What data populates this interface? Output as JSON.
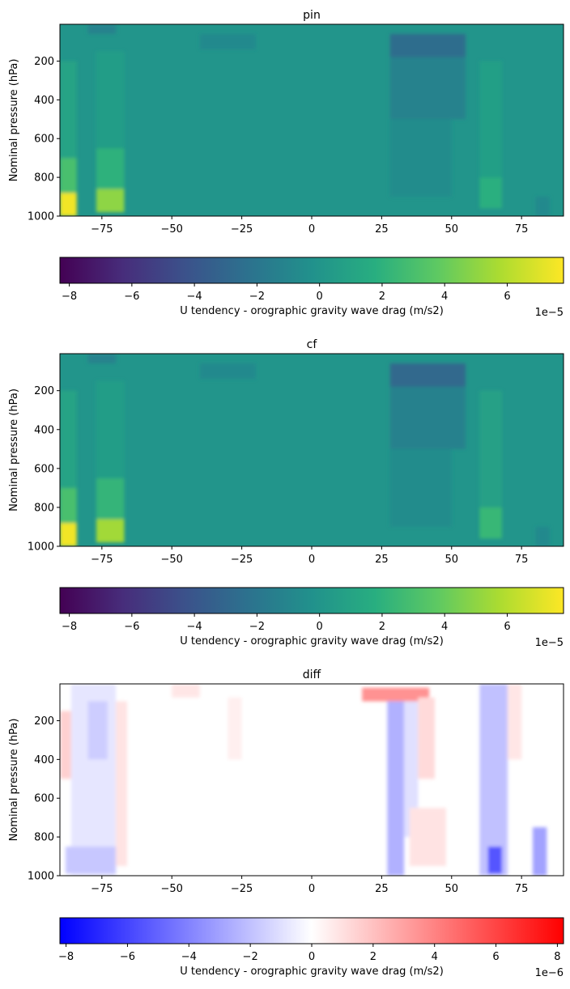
{
  "chart_data": [
    {
      "type": "heatmap",
      "title": "pin",
      "xlabel": "",
      "ylabel": "Nominal pressure (hPa)",
      "xlim": [
        -90,
        90
      ],
      "ylim": [
        1000,
        10
      ],
      "xticks": [
        "−75",
        "−50",
        "−25",
        "0",
        "25",
        "50",
        "75"
      ],
      "yticks": [
        "200",
        "400",
        "600",
        "800",
        "1000"
      ],
      "colormap": "viridis",
      "colorbar": {
        "label": "U tendency - orographic gravity wave drag (m/s2)",
        "range": [
          -8.3,
          7.8
        ],
        "ticks": [
          "−8",
          "−6",
          "−4",
          "−2",
          "0",
          "2",
          "4",
          "6"
        ],
        "offset": "1e−5"
      },
      "features": [
        {
          "lat": [
            -90,
            -84
          ],
          "p": [
            880,
            1000
          ],
          "value": 7.5
        },
        {
          "lat": [
            -90,
            -84
          ],
          "p": [
            700,
            880
          ],
          "value": 3.0
        },
        {
          "lat": [
            -90,
            -84
          ],
          "p": [
            200,
            700
          ],
          "value": 1.0
        },
        {
          "lat": [
            -77,
            -67
          ],
          "p": [
            860,
            980
          ],
          "value": 5.0
        },
        {
          "lat": [
            -77,
            -67
          ],
          "p": [
            650,
            860
          ],
          "value": 2.0
        },
        {
          "lat": [
            -77,
            -67
          ],
          "p": [
            150,
            650
          ],
          "value": 0.6
        },
        {
          "lat": [
            -80,
            -70
          ],
          "p": [
            10,
            60
          ],
          "value": -1.2
        },
        {
          "lat": [
            -40,
            -20
          ],
          "p": [
            60,
            140
          ],
          "value": -0.8
        },
        {
          "lat": [
            28,
            55
          ],
          "p": [
            60,
            180
          ],
          "value": -2.6
        },
        {
          "lat": [
            28,
            55
          ],
          "p": [
            180,
            500
          ],
          "value": -1.2
        },
        {
          "lat": [
            28,
            50
          ],
          "p": [
            500,
            900
          ],
          "value": -0.6
        },
        {
          "lat": [
            60,
            68
          ],
          "p": [
            800,
            960
          ],
          "value": 1.8
        },
        {
          "lat": [
            60,
            68
          ],
          "p": [
            200,
            800
          ],
          "value": 0.7
        },
        {
          "lat": [
            80,
            85
          ],
          "p": [
            900,
            1000
          ],
          "value": -0.8
        }
      ]
    },
    {
      "type": "heatmap",
      "title": "cf",
      "xlabel": "",
      "ylabel": "Nominal pressure (hPa)",
      "xlim": [
        -90,
        90
      ],
      "ylim": [
        1000,
        10
      ],
      "xticks": [
        "−75",
        "−50",
        "−25",
        "0",
        "25",
        "50",
        "75"
      ],
      "yticks": [
        "200",
        "400",
        "600",
        "800",
        "1000"
      ],
      "colormap": "viridis",
      "colorbar": {
        "label": "U tendency - orographic gravity wave drag (m/s2)",
        "range": [
          -8.3,
          7.8
        ],
        "ticks": [
          "−8",
          "−6",
          "−4",
          "−2",
          "0",
          "2",
          "4",
          "6"
        ],
        "offset": "1e−5"
      },
      "features": [
        {
          "lat": [
            -90,
            -84
          ],
          "p": [
            880,
            1000
          ],
          "value": 7.5
        },
        {
          "lat": [
            -90,
            -84
          ],
          "p": [
            700,
            880
          ],
          "value": 3.0
        },
        {
          "lat": [
            -90,
            -84
          ],
          "p": [
            200,
            700
          ],
          "value": 1.0
        },
        {
          "lat": [
            -77,
            -67
          ],
          "p": [
            860,
            980
          ],
          "value": 5.5
        },
        {
          "lat": [
            -77,
            -67
          ],
          "p": [
            650,
            860
          ],
          "value": 2.2
        },
        {
          "lat": [
            -77,
            -67
          ],
          "p": [
            150,
            650
          ],
          "value": 0.6
        },
        {
          "lat": [
            -80,
            -70
          ],
          "p": [
            10,
            60
          ],
          "value": -1.2
        },
        {
          "lat": [
            -40,
            -20
          ],
          "p": [
            60,
            140
          ],
          "value": -0.8
        },
        {
          "lat": [
            28,
            55
          ],
          "p": [
            60,
            180
          ],
          "value": -2.8
        },
        {
          "lat": [
            28,
            55
          ],
          "p": [
            180,
            500
          ],
          "value": -1.3
        },
        {
          "lat": [
            28,
            50
          ],
          "p": [
            500,
            900
          ],
          "value": -0.6
        },
        {
          "lat": [
            60,
            68
          ],
          "p": [
            800,
            960
          ],
          "value": 2.4
        },
        {
          "lat": [
            60,
            68
          ],
          "p": [
            200,
            800
          ],
          "value": 0.8
        },
        {
          "lat": [
            80,
            85
          ],
          "p": [
            900,
            1000
          ],
          "value": -0.8
        }
      ]
    },
    {
      "type": "heatmap",
      "title": "diff",
      "xlabel": "",
      "ylabel": "Nominal pressure (hPa)",
      "xlim": [
        -90,
        90
      ],
      "ylim": [
        1000,
        10
      ],
      "xticks": [
        "−75",
        "−50",
        "−25",
        "0",
        "25",
        "50",
        "75"
      ],
      "yticks": [
        "200",
        "400",
        "600",
        "800",
        "1000"
      ],
      "colormap": "bwr",
      "colorbar": {
        "label": "U tendency - orographic gravity wave drag (m/s2)",
        "range": [
          -8.2,
          8.2
        ],
        "ticks": [
          "−8",
          "−6",
          "−4",
          "−2",
          "0",
          "2",
          "4",
          "6",
          "8"
        ],
        "offset": "1e−6"
      },
      "features": [
        {
          "lat": [
            -90,
            -86
          ],
          "p": [
            150,
            500
          ],
          "value": 1.5
        },
        {
          "lat": [
            -86,
            -70
          ],
          "p": [
            10,
            1000
          ],
          "value": -0.8
        },
        {
          "lat": [
            -80,
            -73
          ],
          "p": [
            100,
            400
          ],
          "value": -1.6
        },
        {
          "lat": [
            -88,
            -70
          ],
          "p": [
            850,
            990
          ],
          "value": -1.8
        },
        {
          "lat": [
            -70,
            -66
          ],
          "p": [
            100,
            950
          ],
          "value": 0.9
        },
        {
          "lat": [
            -50,
            -40
          ],
          "p": [
            10,
            80
          ],
          "value": 0.8
        },
        {
          "lat": [
            -30,
            -25
          ],
          "p": [
            80,
            400
          ],
          "value": 0.5
        },
        {
          "lat": [
            18,
            42
          ],
          "p": [
            30,
            100
          ],
          "value": 3.5
        },
        {
          "lat": [
            27,
            33
          ],
          "p": [
            100,
            1000
          ],
          "value": -2.5
        },
        {
          "lat": [
            33,
            38
          ],
          "p": [
            100,
            800
          ],
          "value": -1.0
        },
        {
          "lat": [
            38,
            44
          ],
          "p": [
            80,
            500
          ],
          "value": 1.2
        },
        {
          "lat": [
            35,
            48
          ],
          "p": [
            650,
            950
          ],
          "value": 0.9
        },
        {
          "lat": [
            60,
            70
          ],
          "p": [
            10,
            1000
          ],
          "value": -2.0
        },
        {
          "lat": [
            63,
            68
          ],
          "p": [
            850,
            990
          ],
          "value": -5.5
        },
        {
          "lat": [
            70,
            75
          ],
          "p": [
            10,
            400
          ],
          "value": 0.8
        },
        {
          "lat": [
            79,
            84
          ],
          "p": [
            750,
            1000
          ],
          "value": -3.0
        }
      ]
    }
  ]
}
